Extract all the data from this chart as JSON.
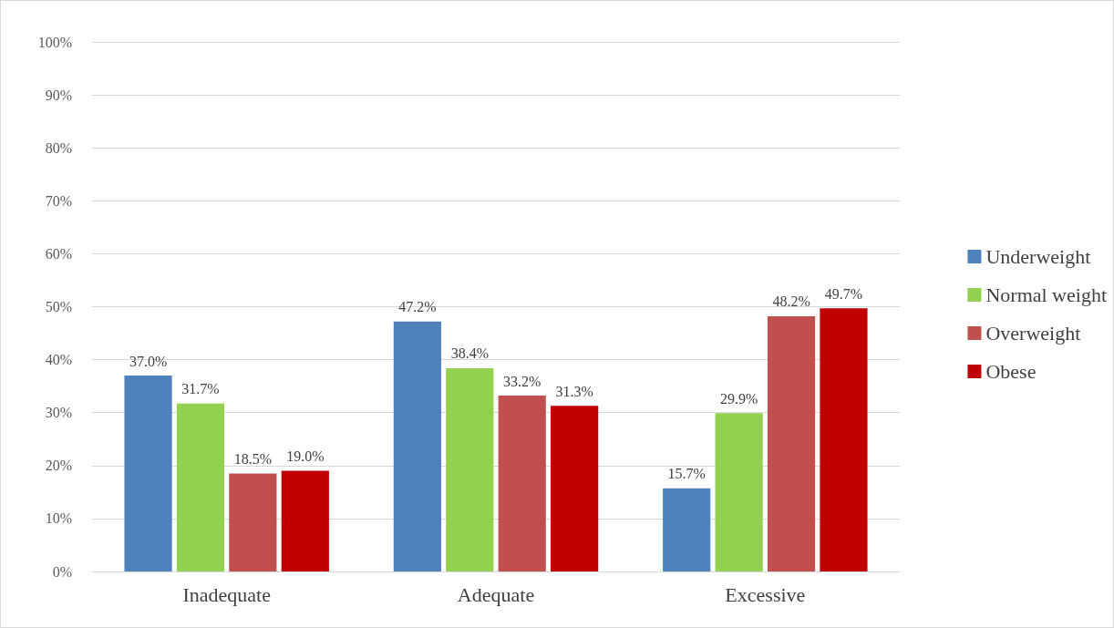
{
  "chart_data": {
    "type": "bar",
    "categories": [
      "Inadequate",
      "Adequate",
      "Excessive"
    ],
    "series": [
      {
        "name": "Underweight",
        "color": "#4f81bd",
        "values": [
          37.0,
          47.2,
          15.7
        ],
        "value_labels": [
          "37.0%",
          "47.2%",
          "15.7%"
        ]
      },
      {
        "name": "Normal weight",
        "color": "#92d050",
        "values": [
          31.7,
          38.4,
          29.9
        ],
        "value_labels": [
          "31.7%",
          "38.4%",
          "29.9%"
        ]
      },
      {
        "name": "Overweight",
        "color": "#c0504d",
        "values": [
          18.5,
          33.2,
          48.2
        ],
        "value_labels": [
          "18.5%",
          "33.2%",
          "48.2%"
        ]
      },
      {
        "name": "Obese",
        "color": "#c00000",
        "values": [
          19.0,
          31.3,
          49.7
        ],
        "value_labels": [
          "19.0%",
          "31.3%",
          "49.7%"
        ]
      }
    ],
    "ylim": [
      0,
      100
    ],
    "yticks": [
      {
        "value": 0,
        "label": "0%"
      },
      {
        "value": 10,
        "label": "10%"
      },
      {
        "value": 20,
        "label": "20%"
      },
      {
        "value": 30,
        "label": "30%"
      },
      {
        "value": 40,
        "label": "40%"
      },
      {
        "value": 50,
        "label": "50%"
      },
      {
        "value": 60,
        "label": "60%"
      },
      {
        "value": 70,
        "label": "70%"
      },
      {
        "value": 80,
        "label": "80%"
      },
      {
        "value": 90,
        "label": "90%"
      },
      {
        "value": 100,
        "label": "100%"
      }
    ],
    "grid": "y",
    "legend": "right"
  }
}
